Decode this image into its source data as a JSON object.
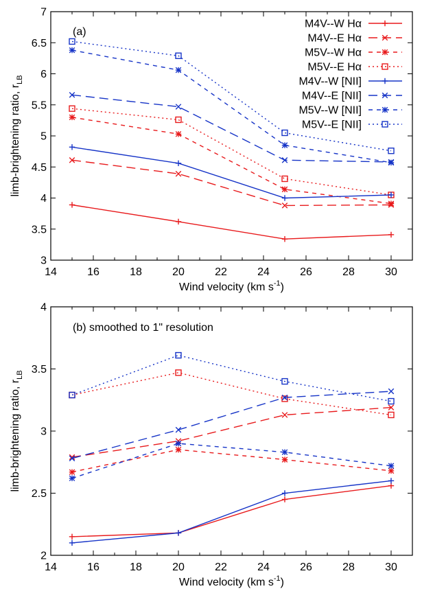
{
  "chart_data": [
    {
      "type": "line",
      "panel_label": "(a)",
      "xlabel": "Wind velocity (km s",
      "xlabel_sup": "-1",
      "xlabel_close": ")",
      "ylabel": "limb-brightening ratio, r",
      "ylabel_sub": "LB",
      "xlim": [
        14,
        31
      ],
      "ylim": [
        3,
        7
      ],
      "x_ticks": [
        14,
        16,
        18,
        20,
        22,
        24,
        26,
        28,
        30
      ],
      "y_ticks": [
        "3",
        "3.5",
        "4",
        "4.5",
        "5",
        "5.5",
        "6",
        "6.5",
        "7"
      ],
      "legend_position": "top-right",
      "x": [
        15,
        20,
        25,
        30
      ],
      "series": [
        {
          "name": "M4V--W Hα",
          "values": [
            3.89,
            3.62,
            3.34,
            3.41
          ],
          "color": "#e8191b",
          "dash": "solid",
          "marker": "plus"
        },
        {
          "name": "M4V--E Hα",
          "values": [
            4.61,
            4.39,
            3.88,
            3.89
          ],
          "color": "#e8191b",
          "dash": "long",
          "marker": "x"
        },
        {
          "name": "M5V--W Hα",
          "values": [
            5.3,
            5.03,
            4.14,
            3.91
          ],
          "color": "#e8191b",
          "dash": "short",
          "marker": "star"
        },
        {
          "name": "M5V--E Hα",
          "values": [
            5.44,
            5.26,
            4.31,
            4.05
          ],
          "color": "#e8191b",
          "dash": "dot",
          "marker": "square"
        },
        {
          "name": "M4V--W [NII]",
          "values": [
            4.82,
            4.56,
            4.0,
            4.05
          ],
          "color": "#1533c7",
          "dash": "solid",
          "marker": "plus"
        },
        {
          "name": "M4V--E [NII]",
          "values": [
            5.66,
            5.47,
            4.61,
            4.58
          ],
          "color": "#1533c7",
          "dash": "long",
          "marker": "x"
        },
        {
          "name": "M5V--W [NII]",
          "values": [
            6.38,
            6.06,
            4.85,
            4.57
          ],
          "color": "#1533c7",
          "dash": "short",
          "marker": "star"
        },
        {
          "name": "M5V--E [NII]",
          "values": [
            6.52,
            6.29,
            5.05,
            4.76
          ],
          "color": "#1533c7",
          "dash": "dot",
          "marker": "square"
        }
      ]
    },
    {
      "type": "line",
      "panel_label": "(b) smoothed to 1\" resolution",
      "xlabel": "Wind velocity (km s",
      "xlabel_sup": "-1",
      "xlabel_close": ")",
      "ylabel": "limb-brightening ratio, r",
      "ylabel_sub": "LB",
      "xlim": [
        14,
        31
      ],
      "ylim": [
        2,
        4
      ],
      "x_ticks": [
        14,
        16,
        18,
        20,
        22,
        24,
        26,
        28,
        30
      ],
      "y_ticks": [
        "2",
        "2.5",
        "3",
        "3.5",
        "4"
      ],
      "x": [
        15,
        20,
        25,
        30
      ],
      "series": [
        {
          "values": [
            2.15,
            2.18,
            2.45,
            2.56
          ],
          "color": "#e8191b",
          "dash": "solid",
          "marker": "plus"
        },
        {
          "values": [
            2.79,
            2.92,
            3.13,
            3.19
          ],
          "color": "#e8191b",
          "dash": "long",
          "marker": "x"
        },
        {
          "values": [
            2.67,
            2.85,
            2.77,
            2.68
          ],
          "color": "#e8191b",
          "dash": "short",
          "marker": "star"
        },
        {
          "values": [
            3.29,
            3.47,
            3.26,
            3.13
          ],
          "color": "#e8191b",
          "dash": "dot",
          "marker": "square"
        },
        {
          "values": [
            2.1,
            2.18,
            2.5,
            2.6
          ],
          "color": "#1533c7",
          "dash": "solid",
          "marker": "plus"
        },
        {
          "values": [
            2.78,
            3.01,
            3.27,
            3.32
          ],
          "color": "#1533c7",
          "dash": "long",
          "marker": "x"
        },
        {
          "values": [
            2.62,
            2.9,
            2.83,
            2.72
          ],
          "color": "#1533c7",
          "dash": "short",
          "marker": "star"
        },
        {
          "values": [
            3.29,
            3.61,
            3.4,
            3.24
          ],
          "color": "#1533c7",
          "dash": "dot",
          "marker": "square"
        }
      ]
    }
  ]
}
